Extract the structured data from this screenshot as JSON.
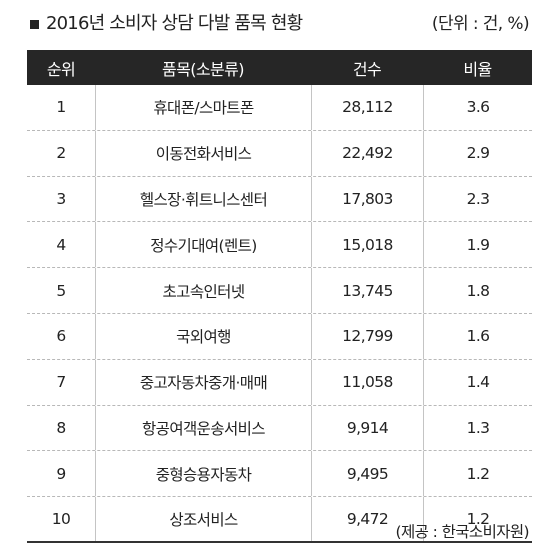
{
  "title": "2016년 소비자 상담 다발 품목 현황",
  "unit": "(단위 : 건, %)",
  "headers": {
    "rank": "순위",
    "item": "품목(소분류)",
    "count": "건수",
    "ratio": "비율"
  },
  "rows": [
    {
      "rank": "1",
      "item": "휴대폰/스마트폰",
      "count": "28,112",
      "ratio": "3.6"
    },
    {
      "rank": "2",
      "item": "이동전화서비스",
      "count": "22,492",
      "ratio": "2.9"
    },
    {
      "rank": "3",
      "item": "헬스장·휘트니스센터",
      "count": "17,803",
      "ratio": "2.3"
    },
    {
      "rank": "4",
      "item": "정수기대여(렌트)",
      "count": "15,018",
      "ratio": "1.9"
    },
    {
      "rank": "5",
      "item": "초고속인터넷",
      "count": "13,745",
      "ratio": "1.8"
    },
    {
      "rank": "6",
      "item": "국외여행",
      "count": "12,799",
      "ratio": "1.6"
    },
    {
      "rank": "7",
      "item": "중고자동차중개·매매",
      "count": "11,058",
      "ratio": "1.4"
    },
    {
      "rank": "8",
      "item": "항공여객운송서비스",
      "count": "9,914",
      "ratio": "1.3"
    },
    {
      "rank": "9",
      "item": "중형승용자동차",
      "count": "9,495",
      "ratio": "1.2"
    },
    {
      "rank": "10",
      "item": "상조서비스",
      "count": "9,472",
      "ratio": "1.2"
    }
  ],
  "source": "(제공 : 한국소비자원)",
  "colors": {
    "header_background": "#262626",
    "header_text": "#ffffff",
    "body_text": "#222222"
  }
}
